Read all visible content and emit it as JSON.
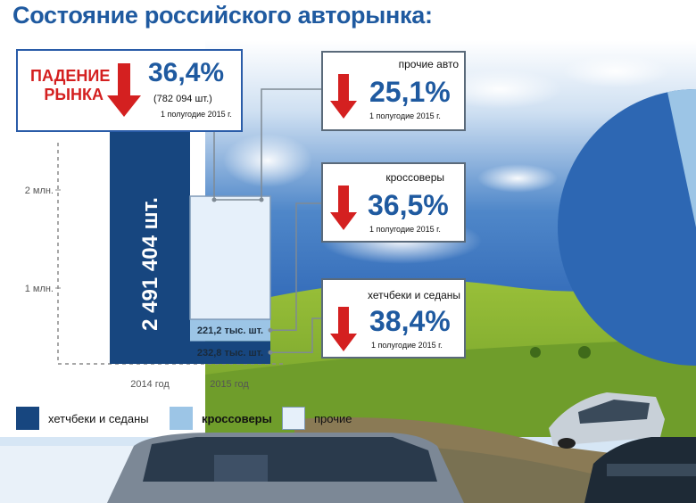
{
  "title": "Состояние российского авторынка:",
  "market_drop": {
    "label_line1": "ПАДЕНИЕ",
    "label_line2": "РЫНКА",
    "percent": "36,4%",
    "units": "(782 094 шт.)",
    "period": "1 полугодие 2015 г."
  },
  "callouts": [
    {
      "category": "прочие авто",
      "percent": "25,1%",
      "period": "1 полугодие 2015 г."
    },
    {
      "category": "кроссоверы",
      "percent": "36,5%",
      "period": "1 полугодие 2015 г."
    },
    {
      "category": "хетчбеки и седаны",
      "percent": "38,4%",
      "period": "1 полугодие 2015 г."
    }
  ],
  "legend": [
    {
      "label": "хетчбеки и седаны",
      "color": "#17467f"
    },
    {
      "label": "кроссоверы",
      "color": "#9cc5e6"
    },
    {
      "label": "прочие",
      "color": "#e6f0fa"
    }
  ],
  "chart_data": {
    "type": "bar",
    "categories": [
      "2014 год",
      "2015 год"
    ],
    "y_ticks": [
      "1 млн.",
      "2 млн."
    ],
    "ylim": [
      0,
      3000000
    ],
    "bar_2014": {
      "value": 2491404,
      "label": "2 491 404 шт.",
      "color": "#17467f"
    },
    "bar_2015_segments": [
      {
        "name": "хетчбеки и седаны",
        "value": 232800,
        "label": "232,8 тыс. шт.",
        "color": "#17467f"
      },
      {
        "name": "кроссоверы",
        "value": 221200,
        "label": "221,2 тыс. шт.",
        "color": "#9cc5e6"
      },
      {
        "name": "прочие",
        "value": 1255000,
        "label": "",
        "color": "#e6f0fa"
      }
    ],
    "connector_color": "#7f8a94"
  }
}
